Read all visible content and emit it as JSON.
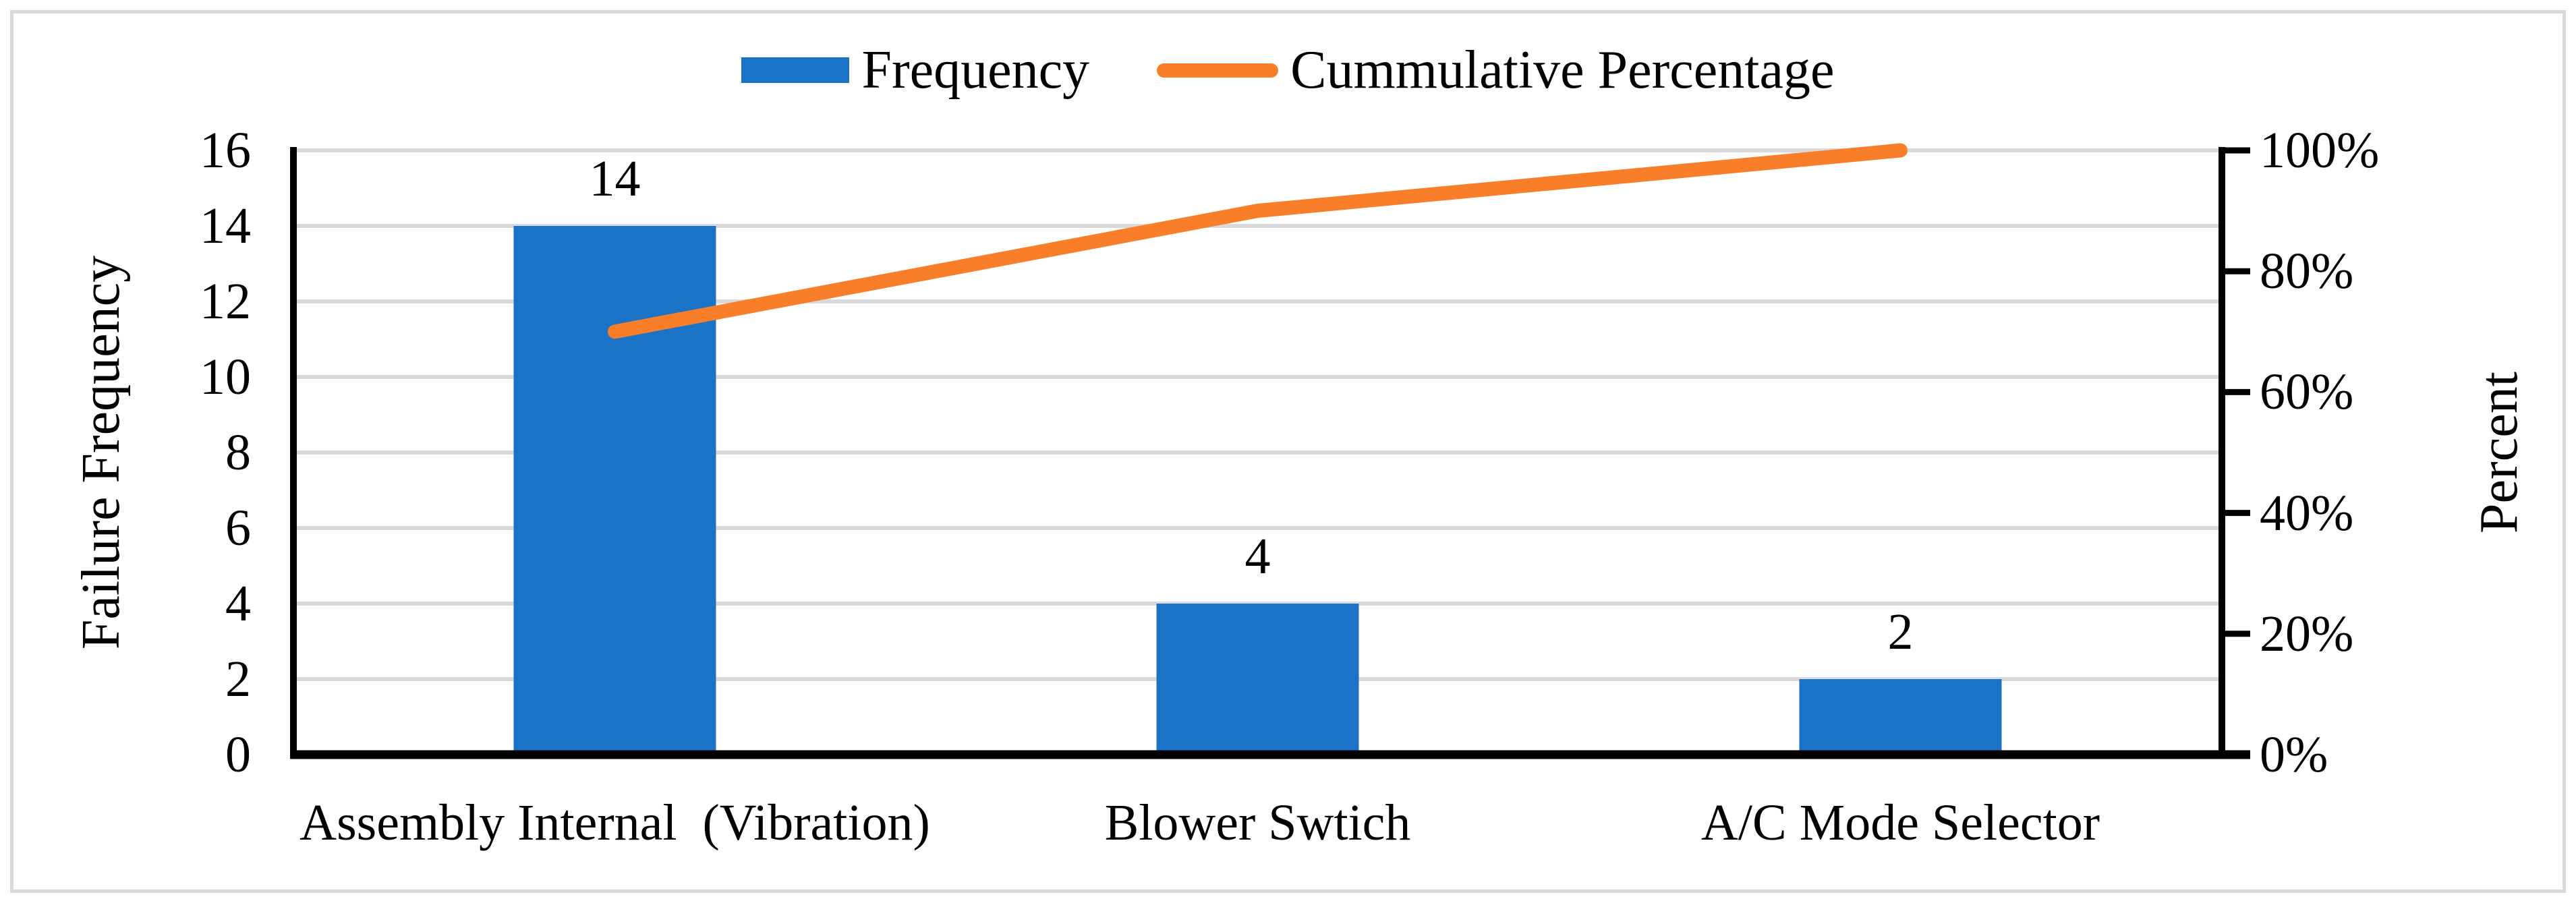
{
  "colors": {
    "bar": "#1B73C7",
    "line": "#F87E2A",
    "gridline": "#DADADA",
    "axis": "#000000",
    "border": "#D9D9D9",
    "background": "#FFFFFF",
    "text": "#000000"
  },
  "legend": {
    "position": "top",
    "items": [
      {
        "label": "Frequency",
        "swatch": "bar",
        "color": "#1B73C7"
      },
      {
        "label": "Cummulative Percentage",
        "swatch": "line",
        "color": "#F87E2A"
      }
    ]
  },
  "chart_data": {
    "type": "pareto (bar + line)",
    "title": "",
    "categories": [
      "Assembly Internal  (Vibration)",
      "Blower Swtich",
      "A/C Mode Selector"
    ],
    "series": [
      {
        "name": "Frequency",
        "chart_type": "bar",
        "axis": "left",
        "color": "#1B73C7",
        "values": [
          14,
          4,
          2
        ],
        "data_labels": [
          "14",
          "4",
          "2"
        ]
      },
      {
        "name": "Cummulative Percentage",
        "chart_type": "line",
        "axis": "right",
        "color": "#F87E2A",
        "unit": "%",
        "values": [
          70,
          90,
          100
        ]
      }
    ],
    "left_axis": {
      "title": "Failure Frequency",
      "min": 0,
      "max": 16,
      "step": 2,
      "ticks": [
        "0",
        "2",
        "4",
        "6",
        "8",
        "10",
        "12",
        "14",
        "16"
      ]
    },
    "right_axis": {
      "title": "Percent",
      "min": 0,
      "max": 100,
      "step": 20,
      "ticks": [
        "0%",
        "20%",
        "40%",
        "60%",
        "80%",
        "100%"
      ]
    },
    "gridlines": "horizontal, at every left-axis step, light gray",
    "legend_position": "top center"
  }
}
